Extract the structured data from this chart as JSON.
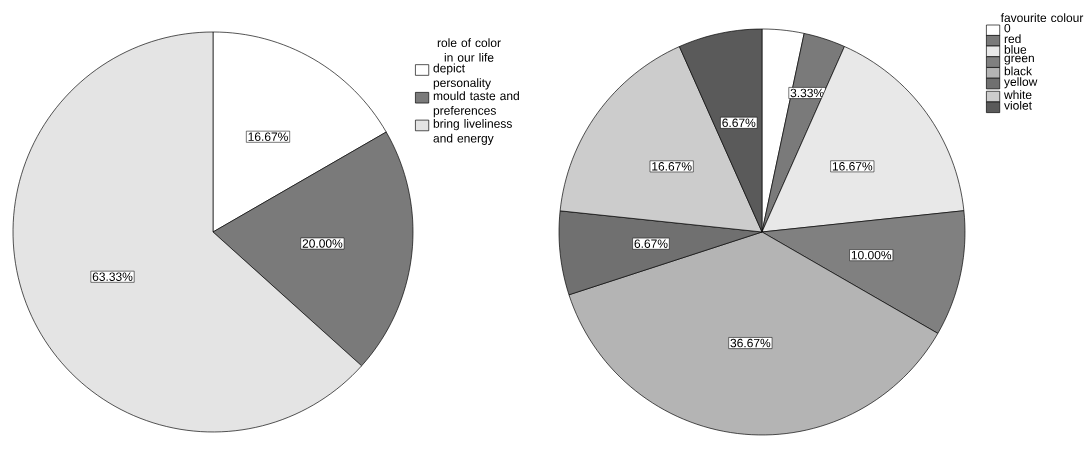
{
  "chart_data": [
    {
      "type": "pie",
      "legend_title": "role of color in our life",
      "legend": "top right",
      "categories": [
        "depict personality",
        "mould taste and preferences",
        "bring liveliness and energy"
      ],
      "values": [
        16.67,
        20.0,
        63.33
      ],
      "colors": [
        "#ffffff",
        "#7a7a7a",
        "#e4e4e4"
      ],
      "value_labels": [
        "16.67%",
        "20.00%",
        "63.33%"
      ]
    },
    {
      "type": "pie",
      "legend_title": "favourite colour",
      "legend": "top right",
      "categories": [
        "0",
        "red",
        "blue",
        "green",
        "black",
        "yellow",
        "white",
        "violet"
      ],
      "values": [
        3.33,
        3.33,
        16.67,
        10.0,
        36.67,
        6.67,
        16.67,
        6.67
      ],
      "colors": [
        "#ffffff",
        "#7a7a7a",
        "#e8e8e8",
        "#808080",
        "#b4b4b4",
        "#707070",
        "#cccccc",
        "#5a5a5a"
      ],
      "value_labels": [
        null,
        "3.33%",
        "16.67%",
        "10.00%",
        "36.67%",
        "6.67%",
        "16.67%",
        "6.67%"
      ]
    }
  ]
}
